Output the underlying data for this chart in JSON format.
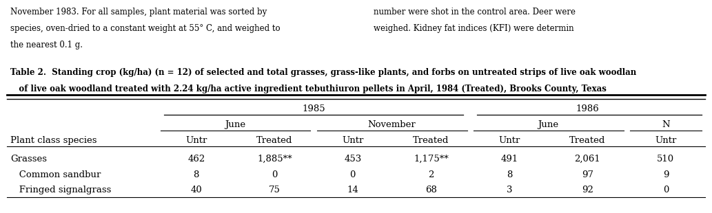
{
  "title_line1": "Table 2.  Standing crop (kg/ha) (n = 12) of selected and total grasses, grass-like plants, and forbs on untreated strips of live oak woodlan",
  "title_line2": "   of live oak woodland treated with 2.24 kg/ha active ingredient tebuthiuron pellets in April, 1984 (Treated), Brooks County, Texas",
  "year_headers": [
    "1985",
    "1986"
  ],
  "month_headers": [
    "June",
    "November",
    "June",
    "N"
  ],
  "col_headers": [
    "Untr",
    "Treated",
    "Untr",
    "Treated",
    "Untr",
    "Treated",
    "Untr"
  ],
  "row_header_col": "Plant class species",
  "rows": [
    {
      "label": "Grasses",
      "indent": false,
      "values": [
        "462",
        "1,885**",
        "453",
        "1,175**",
        "491",
        "2,061",
        "510"
      ]
    },
    {
      "label": "Common sandbur",
      "indent": true,
      "values": [
        "8",
        "0",
        "0",
        "2",
        "8",
        "97",
        "9"
      ]
    },
    {
      "label": "Fringed signalgrass",
      "indent": true,
      "values": [
        "40",
        "75",
        "14",
        "68",
        "3",
        "92",
        "0"
      ]
    }
  ],
  "background_color": "#ffffff",
  "text_color": "#000000",
  "title_fontsize": 8.5,
  "header_fontsize": 9.5,
  "data_fontsize": 9.5,
  "figsize": [
    10.33,
    3.1
  ],
  "dpi": 100,
  "para_left": [
    "November 1983. For all samples, plant material was sorted by",
    "species, oven-dried to a constant weight at 55° C, and weighed to",
    "the nearest 0.1 g."
  ],
  "para_right": [
    "number were shot in the control area. Deer were",
    "weighed. Kidney fat indices (KFI) were determin"
  ]
}
